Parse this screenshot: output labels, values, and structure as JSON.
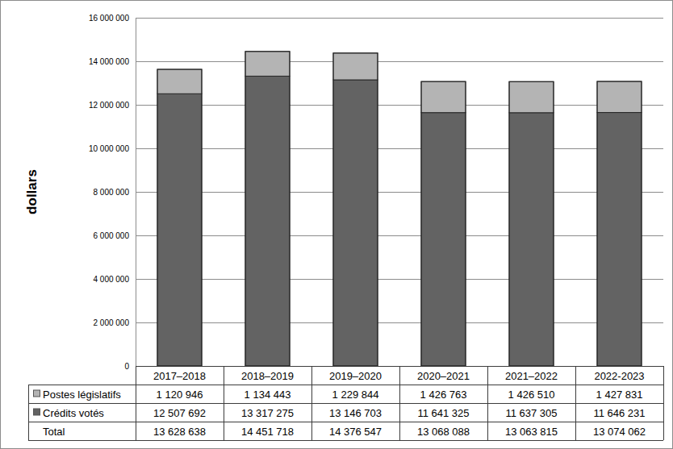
{
  "chart_data": {
    "type": "bar",
    "stacked": true,
    "grid": true,
    "y_label": "dollars",
    "categories": [
      "2017–2018",
      "2018–2019",
      "2019–2020",
      "2020–2021",
      "2021–2022",
      "2022-2023"
    ],
    "series": [
      {
        "name": "Crédits votés",
        "color": "#636363",
        "values": [
          12507692,
          13317275,
          13146703,
          11641325,
          11637305,
          11646231
        ],
        "value_labels": [
          "12 507 692",
          "13 317 275",
          "13 146 703",
          "11 641 325",
          "11 637 305",
          "11 646 231"
        ]
      },
      {
        "name": "Postes législatifs",
        "color": "#b4b4b4",
        "values": [
          1120946,
          1134443,
          1229844,
          1426763,
          1426510,
          1427831
        ],
        "value_labels": [
          "1 120 946",
          "1 134 443",
          "1 229 844",
          "1 426 763",
          "1 426 510",
          "1 427 831"
        ]
      }
    ],
    "totals": {
      "name": "Total",
      "values": [
        13628638,
        14451718,
        14376547,
        13068088,
        13063815,
        13074062
      ],
      "value_labels": [
        "13 628 638",
        "14 451 718",
        "14 376 547",
        "13 068 088",
        "13 063 815",
        "13 074 062"
      ]
    },
    "ylim": [
      0,
      16000000
    ],
    "yticks": [
      0,
      {
        "value": 2000000,
        "label": "2 000 000"
      },
      {
        "value": 4000000,
        "label": "4 000 000"
      },
      {
        "value": 6000000,
        "label": "6 000 000"
      },
      {
        "value": 8000000,
        "label": "8 000 000"
      },
      {
        "value": 10000000,
        "label": "10 000 000"
      },
      {
        "value": 12000000,
        "label": "12 000 000"
      },
      {
        "value": 14000000,
        "label": "14 000 000"
      },
      {
        "value": 16000000,
        "label": "16 000 000"
      }
    ]
  }
}
